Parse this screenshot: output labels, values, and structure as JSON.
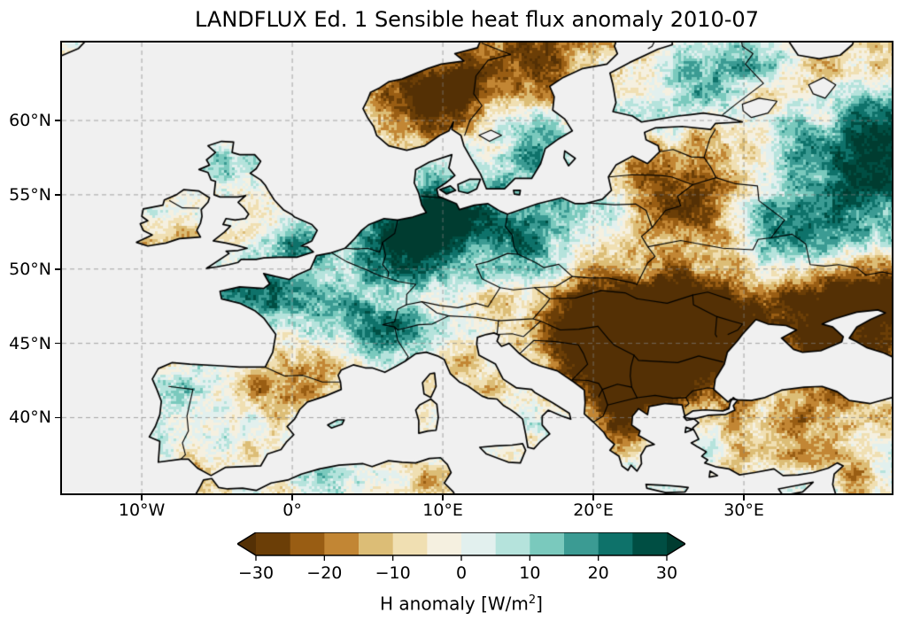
{
  "figure": {
    "title": "LANDFLUX Ed. 1 Sensible heat flux anomaly 2010-07"
  },
  "map": {
    "ocean_color": "#f0f0f0",
    "coastline_color": "#000000",
    "gridline_color": "#828282",
    "extent": {
      "lon_min": -15.3,
      "lon_max": 39.82,
      "lat_min": 34.9,
      "lat_max": 65.25
    },
    "x_ticks": [
      {
        "lon": -10,
        "label": "10°W"
      },
      {
        "lon": 0,
        "label": "0°"
      },
      {
        "lon": 10,
        "label": "10°E"
      },
      {
        "lon": 20,
        "label": "20°E"
      },
      {
        "lon": 30,
        "label": "30°E"
      }
    ],
    "y_ticks": [
      {
        "lat": 60,
        "label": "60°N"
      },
      {
        "lat": 55,
        "label": "55°N"
      },
      {
        "lat": 50,
        "label": "50°N"
      },
      {
        "lat": 45,
        "label": "45°N"
      },
      {
        "lat": 40,
        "label": "40°N"
      }
    ],
    "grid_lons": [
      -10,
      0,
      10,
      20,
      30
    ],
    "grid_lats": [
      40,
      45,
      50,
      55,
      60
    ]
  },
  "colorbar": {
    "label_before_sup": "H anomaly [W/m",
    "label_sup": "2",
    "label_after_sup": "]",
    "ticks": [
      {
        "value": -30,
        "label": "−30"
      },
      {
        "value": -20,
        "label": "−20"
      },
      {
        "value": -10,
        "label": "−10"
      },
      {
        "value": 0,
        "label": "0"
      },
      {
        "value": 10,
        "label": "10"
      },
      {
        "value": 20,
        "label": "20"
      },
      {
        "value": 30,
        "label": "30"
      }
    ],
    "boundaries": [
      -30,
      -25,
      -20,
      -15,
      -10,
      -5,
      0,
      5,
      10,
      15,
      20,
      25,
      30
    ],
    "under_color": "#543005",
    "over_color": "#003c30",
    "bin_colors": [
      "#6b3e07",
      "#995d13",
      "#c28634",
      "#dcbd76",
      "#f0dfb2",
      "#f5f0e0",
      "#e2f0ee",
      "#b5e3dc",
      "#7ac9bd",
      "#3b9b93",
      "#0e726a",
      "#004e43"
    ]
  },
  "anomaly_field": {
    "units": "W/m2",
    "blob_format": [
      "lon_deg",
      "lat_deg",
      "sigma_deg",
      "amplitude_wm2"
    ],
    "blobs": [
      [
        7.8,
        52.4,
        2.0,
        26
      ],
      [
        9.8,
        53.3,
        1.8,
        16
      ],
      [
        12.8,
        53.2,
        2.2,
        14
      ],
      [
        16.8,
        53.6,
        2.0,
        13
      ],
      [
        20.8,
        53.7,
        1.6,
        10
      ],
      [
        16.5,
        50.9,
        1.3,
        10
      ],
      [
        -3.2,
        48.3,
        1.4,
        20
      ],
      [
        0.3,
        48.3,
        2.2,
        13
      ],
      [
        4.3,
        45.9,
        1.6,
        16
      ],
      [
        6.6,
        46.6,
        1.3,
        13
      ],
      [
        2.0,
        46.4,
        1.5,
        -9
      ],
      [
        -0.6,
        44.3,
        1.5,
        -6
      ],
      [
        1.8,
        42.7,
        1.8,
        -12
      ],
      [
        -2.0,
        42.0,
        1.4,
        -7
      ],
      [
        -4.3,
        57.2,
        1.0,
        13
      ],
      [
        0.3,
        51.6,
        1.2,
        13
      ],
      [
        -2.8,
        52.3,
        1.2,
        -7
      ],
      [
        -8.0,
        53.2,
        1.6,
        -7
      ],
      [
        -3.5,
        58.3,
        0.8,
        -8
      ],
      [
        -4.0,
        40.0,
        2.5,
        4
      ],
      [
        -8.4,
        39.8,
        1.2,
        7
      ],
      [
        -6.2,
        37.3,
        1.4,
        -6
      ],
      [
        -0.9,
        41.5,
        1.3,
        -7
      ],
      [
        8.5,
        61.3,
        2.0,
        -22
      ],
      [
        9.5,
        62.5,
        1.5,
        -12
      ],
      [
        13.5,
        63.4,
        2.2,
        -20
      ],
      [
        18.5,
        64.8,
        2.4,
        -13
      ],
      [
        7.0,
        59.0,
        1.3,
        -8
      ],
      [
        15.5,
        59.8,
        1.6,
        6
      ],
      [
        16.5,
        58.0,
        1.4,
        8
      ],
      [
        26.8,
        62.8,
        1.7,
        12
      ],
      [
        29.5,
        63.5,
        1.8,
        8
      ],
      [
        23.0,
        60.5,
        1.5,
        5
      ],
      [
        25.6,
        54.8,
        1.8,
        -20
      ],
      [
        28.2,
        53.8,
        1.9,
        -13
      ],
      [
        23.2,
        56.7,
        1.4,
        -11
      ],
      [
        26.5,
        58.3,
        1.2,
        -7
      ],
      [
        21.0,
        52.3,
        1.5,
        -6
      ],
      [
        25.0,
        46.3,
        2.6,
        -28
      ],
      [
        21.3,
        44.3,
        2.2,
        -24
      ],
      [
        25.8,
        43.4,
        2.3,
        -24
      ],
      [
        19.6,
        47.0,
        1.8,
        -17
      ],
      [
        27.8,
        46.3,
        1.8,
        -20
      ],
      [
        29.0,
        45.6,
        1.3,
        -18
      ],
      [
        14.5,
        50.2,
        1.5,
        -6
      ],
      [
        19.5,
        49.3,
        1.3,
        -8
      ],
      [
        23.5,
        49.3,
        1.5,
        -6
      ],
      [
        33.0,
        47.9,
        3.0,
        -24
      ],
      [
        37.0,
        48.6,
        2.3,
        -22
      ],
      [
        39.5,
        47.8,
        1.8,
        -18
      ],
      [
        34.6,
        45.2,
        1.1,
        -15
      ],
      [
        38.5,
        44.8,
        1.8,
        -14
      ],
      [
        35.5,
        52.8,
        3.8,
        18
      ],
      [
        38.5,
        56.0,
        3.0,
        16
      ],
      [
        39.0,
        59.5,
        2.4,
        12
      ],
      [
        32.5,
        50.8,
        2.2,
        13
      ],
      [
        31.5,
        57.8,
        2.3,
        -6
      ],
      [
        34.2,
        62.6,
        1.6,
        -12
      ],
      [
        38.8,
        63.9,
        1.8,
        -13
      ],
      [
        21.5,
        40.4,
        1.3,
        -15
      ],
      [
        22.0,
        38.9,
        1.1,
        -11
      ],
      [
        20.3,
        42.3,
        1.2,
        -10
      ],
      [
        35.0,
        41.3,
        2.3,
        -13
      ],
      [
        30.8,
        37.3,
        1.7,
        -7
      ],
      [
        33.5,
        38.6,
        2.8,
        -4
      ],
      [
        27.6,
        38.6,
        1.3,
        6
      ],
      [
        36.8,
        36.9,
        1.5,
        -10
      ],
      [
        12.2,
        45.1,
        1.3,
        -8
      ],
      [
        13.8,
        42.2,
        1.3,
        -7
      ],
      [
        8.8,
        45.7,
        1.0,
        7
      ],
      [
        -2.2,
        34.8,
        1.8,
        -9
      ],
      [
        2.6,
        35.9,
        1.8,
        8
      ],
      [
        8.6,
        36.3,
        1.4,
        -6
      ],
      [
        9.8,
        34.9,
        1.5,
        -8
      ]
    ],
    "noise": {
      "low_freq_amp": 9,
      "mid_freq_amp": 6,
      "speckle_amp": 8
    }
  }
}
